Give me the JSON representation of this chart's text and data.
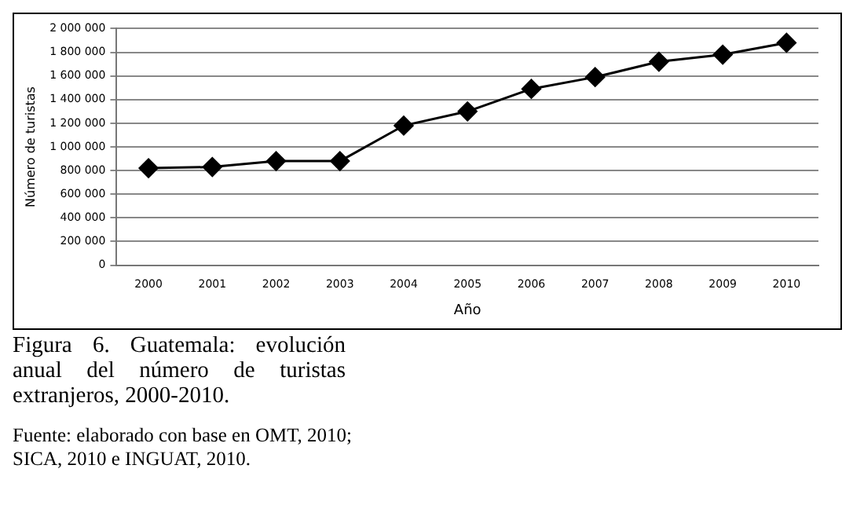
{
  "chart_data": {
    "type": "line",
    "title": "Figura 6. Guatemala: evolución anual del número de turistas extranjeros, 2000-2010.",
    "annotations": [
      "Fuente: elaborado con base en OMT, 2010; SICA, 2010 e INGUAT, 2010."
    ],
    "xlabel": "Año",
    "ylabel": "Número de turistas",
    "categories": [
      "2000",
      "2001",
      "2002",
      "2003",
      "2004",
      "2005",
      "2006",
      "2007",
      "2008",
      "2009",
      "2010"
    ],
    "series": [
      {
        "color": "#000000",
        "values": [
          820000,
          830000,
          880000,
          880000,
          1180000,
          1300000,
          1490000,
          1590000,
          1720000,
          1780000,
          1880000
        ]
      }
    ],
    "ylim": [
      0,
      2000000
    ],
    "yticks": [
      0,
      {
        "value": 200000,
        "label": "200 000"
      },
      {
        "value": 400000,
        "label": "400 000"
      },
      {
        "value": 600000,
        "label": "600 000"
      },
      {
        "value": 800000,
        "label": "800 000"
      },
      {
        "value": 1000000,
        "label": "1 000 000"
      },
      {
        "value": 1200000,
        "label": "1 200 000"
      },
      {
        "value": 1400000,
        "label": "1 400 000"
      },
      {
        "value": 1600000,
        "label": "1 600 000"
      },
      {
        "value": 1800000,
        "label": "1 800 000"
      },
      {
        "value": 2000000,
        "label": "2 000 000"
      }
    ],
    "grid": "y",
    "legend": false,
    "marker": "diamond",
    "line_style": "solid"
  }
}
